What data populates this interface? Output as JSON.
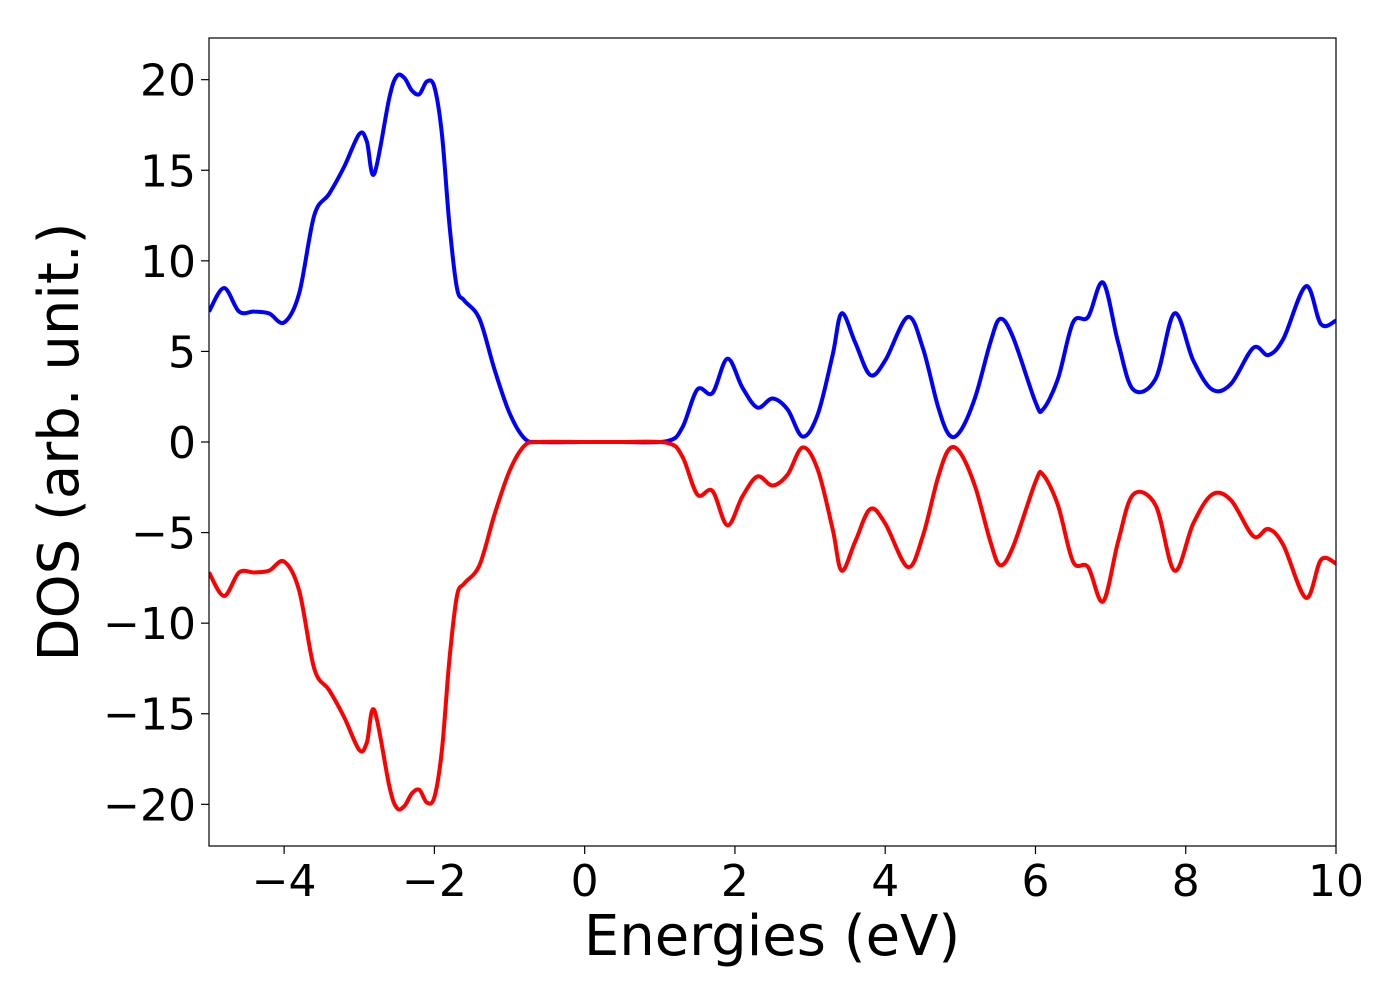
{
  "chart_data": {
    "type": "line",
    "title": "",
    "xlabel": "Energies (eV)",
    "ylabel": "DOS (arb. unit.)",
    "xlim": [
      -5,
      10
    ],
    "ylim": [
      -22.3,
      22.3
    ],
    "grid": false,
    "legend": "none",
    "x_ticks": [
      -4,
      -2,
      0,
      2,
      4,
      6,
      8,
      10
    ],
    "x_tick_labels": [
      "−4",
      "−2",
      "0",
      "2",
      "4",
      "6",
      "8",
      "10"
    ],
    "y_ticks": [
      -20,
      -15,
      -10,
      -5,
      0,
      5,
      10,
      15,
      20
    ],
    "y_tick_labels": [
      "−20",
      "−15",
      "−10",
      "−5",
      "0",
      "5",
      "10",
      "15",
      "20"
    ],
    "series": [
      {
        "color": "#0000ff",
        "x": [
          -5.0,
          -4.8,
          -4.6,
          -4.4,
          -4.2,
          -4.0,
          -3.8,
          -3.6,
          -3.4,
          -3.2,
          -3.0,
          -2.9,
          -2.8,
          -2.6,
          -2.5,
          -2.4,
          -2.3,
          -2.2,
          -2.1,
          -2.0,
          -1.9,
          -1.8,
          -1.7,
          -1.6,
          -1.4,
          -1.2,
          -1.0,
          -0.8,
          -0.6,
          0.0,
          0.5,
          1.1,
          1.3,
          1.5,
          1.7,
          1.9,
          2.1,
          2.3,
          2.5,
          2.7,
          2.9,
          3.1,
          3.3,
          3.42,
          3.6,
          3.8,
          4.0,
          4.3,
          4.5,
          4.7,
          4.85,
          5.0,
          5.2,
          5.4,
          5.53,
          5.7,
          6.0,
          6.1,
          6.3,
          6.5,
          6.7,
          6.9,
          7.1,
          7.3,
          7.6,
          7.85,
          8.1,
          8.35,
          8.6,
          8.9,
          9.1,
          9.3,
          9.6,
          9.8,
          10.0
        ],
        "y": [
          7.2,
          8.5,
          7.2,
          7.2,
          7.1,
          6.6,
          8.2,
          12.5,
          13.7,
          15.2,
          17.0,
          16.6,
          14.8,
          19.0,
          20.2,
          20.1,
          19.4,
          19.2,
          19.9,
          19.6,
          17.0,
          12.0,
          8.5,
          7.8,
          6.8,
          4.0,
          1.6,
          0.2,
          0.0,
          0.0,
          0.0,
          0.05,
          0.8,
          2.9,
          2.7,
          4.6,
          3.0,
          1.9,
          2.4,
          1.8,
          0.3,
          1.5,
          4.8,
          7.1,
          5.5,
          3.7,
          4.5,
          6.9,
          5.2,
          2.0,
          0.4,
          0.6,
          2.5,
          5.5,
          6.8,
          5.8,
          2.2,
          1.8,
          3.5,
          6.6,
          6.9,
          8.8,
          5.5,
          2.9,
          3.5,
          7.1,
          4.5,
          2.9,
          3.2,
          5.2,
          4.8,
          5.7,
          8.6,
          6.5,
          6.7
        ]
      },
      {
        "color": "#ff0000",
        "x": [
          -5.0,
          -4.8,
          -4.6,
          -4.4,
          -4.2,
          -4.0,
          -3.8,
          -3.6,
          -3.4,
          -3.2,
          -3.0,
          -2.9,
          -2.8,
          -2.6,
          -2.5,
          -2.4,
          -2.3,
          -2.2,
          -2.1,
          -2.0,
          -1.9,
          -1.8,
          -1.7,
          -1.6,
          -1.4,
          -1.2,
          -1.0,
          -0.8,
          -0.6,
          0.0,
          0.5,
          1.1,
          1.3,
          1.5,
          1.7,
          1.9,
          2.1,
          2.3,
          2.5,
          2.7,
          2.9,
          3.1,
          3.3,
          3.42,
          3.6,
          3.8,
          4.0,
          4.3,
          4.5,
          4.7,
          4.85,
          5.0,
          5.2,
          5.4,
          5.53,
          5.7,
          6.0,
          6.1,
          6.3,
          6.5,
          6.7,
          6.9,
          7.1,
          7.3,
          7.6,
          7.85,
          8.1,
          8.35,
          8.6,
          8.9,
          9.1,
          9.3,
          9.6,
          9.8,
          10.0
        ],
        "y": [
          -7.2,
          -8.5,
          -7.2,
          -7.2,
          -7.1,
          -6.6,
          -8.2,
          -12.5,
          -13.7,
          -15.2,
          -17.0,
          -16.6,
          -14.8,
          -19.0,
          -20.2,
          -20.1,
          -19.4,
          -19.2,
          -19.9,
          -19.6,
          -17.0,
          -12.0,
          -8.5,
          -7.8,
          -6.8,
          -4.0,
          -1.6,
          -0.2,
          0.0,
          0.0,
          0.0,
          -0.05,
          -0.8,
          -2.9,
          -2.7,
          -4.6,
          -3.0,
          -1.9,
          -2.4,
          -1.8,
          -0.3,
          -1.5,
          -4.8,
          -7.1,
          -5.5,
          -3.7,
          -4.5,
          -6.9,
          -5.2,
          -2.0,
          -0.4,
          -0.6,
          -2.5,
          -5.5,
          -6.8,
          -5.8,
          -2.2,
          -1.8,
          -3.5,
          -6.6,
          -6.9,
          -8.8,
          -5.5,
          -2.9,
          -3.5,
          -7.1,
          -4.5,
          -2.9,
          -3.2,
          -5.2,
          -4.8,
          -5.7,
          -8.6,
          -6.5,
          -6.7
        ]
      }
    ]
  }
}
